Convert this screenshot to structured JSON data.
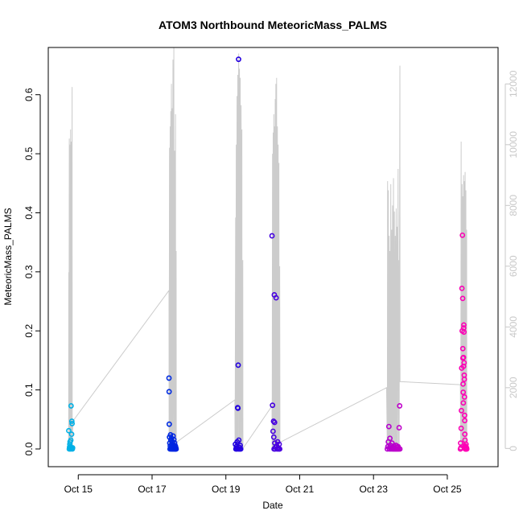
{
  "chart_data": {
    "type": "scatter",
    "title": "ATOM3 Northbound MeteoricMass_PALMS",
    "xlabel": "Date",
    "ylabel": "MeteoricMass_PALMS",
    "xlim": [
      "2017-10-14T04:30",
      "2017-10-26T09:00"
    ],
    "ylim": [
      -0.03,
      0.68
    ],
    "y2lim": [
      -600,
      13200
    ],
    "x_ticks": [
      {
        "label": "Oct 15",
        "date": "2017-10-15T00:00"
      },
      {
        "label": "Oct 17",
        "date": "2017-10-17T00:00"
      },
      {
        "label": "Oct 19",
        "date": "2017-10-19T00:00"
      },
      {
        "label": "Oct 21",
        "date": "2017-10-21T00:00"
      },
      {
        "label": "Oct 23",
        "date": "2017-10-23T00:00"
      },
      {
        "label": "Oct 25",
        "date": "2017-10-25T00:00"
      }
    ],
    "y_ticks": [
      "0.0",
      "0.1",
      "0.2",
      "0.3",
      "0.4",
      "0.5",
      "0.6"
    ],
    "y2_ticks": [
      "0",
      "2000",
      "4000",
      "6000",
      "8000",
      "10000",
      "12000"
    ],
    "colors": {
      "altitude_line": "#cccccc",
      "right_axis": "#c8c8c8",
      "point_gradient": [
        "#00b4e6",
        "#0000e0",
        "#8000e0",
        "#ff00b4"
      ]
    },
    "altitude_profile": [
      [
        "2017-10-14T17:45",
        0
      ],
      [
        "2017-10-14T17:50",
        5800
      ],
      [
        "2017-10-14T17:55",
        0
      ],
      [
        "2017-10-14T18:10",
        10200
      ],
      [
        "2017-10-14T18:15",
        0
      ],
      [
        "2017-10-14T18:35",
        10000
      ],
      [
        "2017-10-14T18:40",
        0
      ],
      [
        "2017-10-14T19:00",
        10500
      ],
      [
        "2017-10-14T19:05",
        0
      ],
      [
        "2017-10-14T19:30",
        10100
      ],
      [
        "2017-10-14T19:35",
        0
      ],
      [
        "2017-10-14T20:00",
        11900
      ],
      [
        "2017-10-14T20:05",
        0
      ],
      [
        "2017-10-14T20:30",
        900
      ],
      [
        "2017-10-17T11:00",
        5200
      ],
      [
        "2017-10-17T11:05",
        0
      ],
      [
        "2017-10-17T11:20",
        9900
      ],
      [
        "2017-10-17T11:25",
        0
      ],
      [
        "2017-10-17T11:45",
        10600
      ],
      [
        "2017-10-17T11:50",
        0
      ],
      [
        "2017-10-17T12:10",
        11100
      ],
      [
        "2017-10-17T12:15",
        0
      ],
      [
        "2017-10-17T12:35",
        12000
      ],
      [
        "2017-10-17T12:40",
        0
      ],
      [
        "2017-10-17T13:05",
        11200
      ],
      [
        "2017-10-17T13:10",
        0
      ],
      [
        "2017-10-17T13:35",
        12800
      ],
      [
        "2017-10-17T13:40",
        0
      ],
      [
        "2017-10-17T14:10",
        13200
      ],
      [
        "2017-10-17T14:15",
        0
      ],
      [
        "2017-10-17T14:40",
        9800
      ],
      [
        "2017-10-17T14:45",
        0
      ],
      [
        "2017-10-17T15:15",
        11000
      ],
      [
        "2017-10-17T15:20",
        0
      ],
      [
        "2017-10-17T15:40",
        6500
      ],
      [
        "2017-10-17T15:45",
        200
      ],
      [
        "2017-10-19T05:50",
        1600
      ],
      [
        "2017-10-19T06:00",
        0
      ],
      [
        "2017-10-19T06:20",
        7600
      ],
      [
        "2017-10-19T06:25",
        0
      ],
      [
        "2017-10-19T06:45",
        10000
      ],
      [
        "2017-10-19T06:50",
        0
      ],
      [
        "2017-10-19T07:15",
        11600
      ],
      [
        "2017-10-19T07:20",
        0
      ],
      [
        "2017-10-19T07:45",
        12300
      ],
      [
        "2017-10-19T07:50",
        0
      ],
      [
        "2017-10-19T08:20",
        13000
      ],
      [
        "2017-10-19T08:25",
        0
      ],
      [
        "2017-10-19T08:50",
        12500
      ],
      [
        "2017-10-19T08:55",
        0
      ],
      [
        "2017-10-19T09:20",
        12200
      ],
      [
        "2017-10-19T09:25",
        0
      ],
      [
        "2017-10-19T09:55",
        11300
      ],
      [
        "2017-10-19T10:00",
        0
      ],
      [
        "2017-10-19T10:25",
        10500
      ],
      [
        "2017-10-19T10:30",
        0
      ],
      [
        "2017-10-19T11:00",
        6200
      ],
      [
        "2017-10-19T11:05",
        0
      ],
      [
        "2017-10-20T06:00",
        1400
      ],
      [
        "2017-10-20T06:05",
        0
      ],
      [
        "2017-10-20T06:20",
        9700
      ],
      [
        "2017-10-20T06:25",
        0
      ],
      [
        "2017-10-20T06:45",
        10400
      ],
      [
        "2017-10-20T06:50",
        0
      ],
      [
        "2017-10-20T07:10",
        11000
      ],
      [
        "2017-10-20T07:15",
        0
      ],
      [
        "2017-10-20T07:35",
        10600
      ],
      [
        "2017-10-20T07:40",
        0
      ],
      [
        "2017-10-20T08:05",
        11500
      ],
      [
        "2017-10-20T08:10",
        0
      ],
      [
        "2017-10-20T08:30",
        12000
      ],
      [
        "2017-10-20T08:35",
        0
      ],
      [
        "2017-10-20T09:00",
        12200
      ],
      [
        "2017-10-20T09:05",
        0
      ],
      [
        "2017-10-20T09:30",
        10600
      ],
      [
        "2017-10-20T09:35",
        0
      ],
      [
        "2017-10-20T10:00",
        10000
      ],
      [
        "2017-10-20T10:05",
        0
      ],
      [
        "2017-10-20T10:30",
        9400
      ],
      [
        "2017-10-20T10:35",
        0
      ],
      [
        "2017-10-20T11:00",
        6000
      ],
      [
        "2017-10-20T11:10",
        200
      ],
      [
        "2017-10-23T08:30",
        2000
      ],
      [
        "2017-10-23T09:00",
        0
      ],
      [
        "2017-10-23T09:10",
        8800
      ],
      [
        "2017-10-23T09:15",
        0
      ],
      [
        "2017-10-23T09:40",
        8500
      ],
      [
        "2017-10-23T09:45",
        0
      ],
      [
        "2017-10-23T10:10",
        7000
      ],
      [
        "2017-10-23T10:15",
        0
      ],
      [
        "2017-10-23T10:40",
        6500
      ],
      [
        "2017-10-23T10:45",
        0
      ],
      [
        "2017-10-23T11:15",
        8700
      ],
      [
        "2017-10-23T11:20",
        0
      ],
      [
        "2017-10-23T11:50",
        7200
      ],
      [
        "2017-10-23T11:55",
        0
      ],
      [
        "2017-10-23T12:25",
        8000
      ],
      [
        "2017-10-23T12:30",
        0
      ],
      [
        "2017-10-23T13:00",
        8900
      ],
      [
        "2017-10-23T13:05",
        0
      ],
      [
        "2017-10-23T13:35",
        7800
      ],
      [
        "2017-10-23T13:40",
        0
      ],
      [
        "2017-10-23T14:10",
        7000
      ],
      [
        "2017-10-23T14:15",
        0
      ],
      [
        "2017-10-23T14:45",
        7900
      ],
      [
        "2017-10-23T14:50",
        0
      ],
      [
        "2017-10-23T15:20",
        7300
      ],
      [
        "2017-10-23T15:25",
        0
      ],
      [
        "2017-10-23T16:00",
        9200
      ],
      [
        "2017-10-23T16:05",
        0
      ],
      [
        "2017-10-23T16:35",
        6200
      ],
      [
        "2017-10-23T16:40",
        0
      ],
      [
        "2017-10-23T17:10",
        12600
      ],
      [
        "2017-10-23T17:15",
        2200
      ],
      [
        "2017-10-25T08:30",
        2100
      ],
      [
        "2017-10-25T08:45",
        0
      ],
      [
        "2017-10-25T09:00",
        10100
      ],
      [
        "2017-10-25T09:05",
        0
      ],
      [
        "2017-10-25T09:35",
        8700
      ],
      [
        "2017-10-25T09:40",
        0
      ],
      [
        "2017-10-25T10:05",
        8300
      ],
      [
        "2017-10-25T10:10",
        0
      ],
      [
        "2017-10-25T10:35",
        9000
      ],
      [
        "2017-10-25T10:40",
        0
      ],
      [
        "2017-10-25T11:05",
        8800
      ],
      [
        "2017-10-25T11:10",
        0
      ],
      [
        "2017-10-25T11:35",
        9100
      ],
      [
        "2017-10-25T11:40",
        0
      ],
      [
        "2017-10-25T12:05",
        8500
      ],
      [
        "2017-10-25T12:10",
        0
      ],
      [
        "2017-10-25T12:35",
        7200
      ],
      [
        "2017-10-25T12:40",
        0
      ]
    ],
    "points": [
      [
        "2017-10-14T17:50",
        0.031
      ],
      [
        "2017-10-14T18:10",
        0.0
      ],
      [
        "2017-10-14T18:20",
        0.003
      ],
      [
        "2017-10-14T18:30",
        0.008
      ],
      [
        "2017-10-14T18:40",
        0.012
      ],
      [
        "2017-10-14T18:50",
        0.004
      ],
      [
        "2017-10-14T19:00",
        0.0
      ],
      [
        "2017-10-14T19:05",
        0.001
      ],
      [
        "2017-10-14T19:10",
        0.015
      ],
      [
        "2017-10-14T19:20",
        0.073
      ],
      [
        "2017-10-14T19:30",
        0.002
      ],
      [
        "2017-10-14T19:40",
        0.025
      ],
      [
        "2017-10-14T19:50",
        0.047
      ],
      [
        "2017-10-14T20:00",
        0.043
      ],
      [
        "2017-10-14T20:10",
        0.0
      ],
      [
        "2017-10-14T20:20",
        0.002
      ],
      [
        "2017-10-17T11:00",
        0.12
      ],
      [
        "2017-10-17T11:05",
        0.097
      ],
      [
        "2017-10-17T11:10",
        0.042
      ],
      [
        "2017-10-17T11:20",
        0.02
      ],
      [
        "2017-10-17T11:30",
        0.01
      ],
      [
        "2017-10-17T11:40",
        0.0
      ],
      [
        "2017-10-17T11:50",
        0.005
      ],
      [
        "2017-10-17T12:00",
        0.024
      ],
      [
        "2017-10-17T12:10",
        0.015
      ],
      [
        "2017-10-17T12:20",
        0.002
      ],
      [
        "2017-10-17T12:30",
        0.0
      ],
      [
        "2017-10-17T12:40",
        0.018
      ],
      [
        "2017-10-17T12:50",
        0.008
      ],
      [
        "2017-10-17T13:00",
        0.0
      ],
      [
        "2017-10-17T13:10",
        0.003
      ],
      [
        "2017-10-17T13:20",
        0.012
      ],
      [
        "2017-10-17T13:30",
        0.0
      ],
      [
        "2017-10-17T13:40",
        0.022
      ],
      [
        "2017-10-17T13:50",
        0.004
      ],
      [
        "2017-10-17T14:00",
        0.0
      ],
      [
        "2017-10-17T14:10",
        0.016
      ],
      [
        "2017-10-17T14:20",
        0.006
      ],
      [
        "2017-10-17T14:30",
        0.0
      ],
      [
        "2017-10-17T14:40",
        0.01
      ],
      [
        "2017-10-17T14:50",
        0.002
      ],
      [
        "2017-10-17T15:00",
        0.0
      ],
      [
        "2017-10-17T15:10",
        0.005
      ],
      [
        "2017-10-17T15:20",
        0.0
      ],
      [
        "2017-10-17T15:30",
        0.002
      ],
      [
        "2017-10-17T15:40",
        0.0
      ],
      [
        "2017-10-19T06:10",
        0.008
      ],
      [
        "2017-10-19T06:30",
        0.0
      ],
      [
        "2017-10-19T06:50",
        0.004
      ],
      [
        "2017-10-19T07:10",
        0.0
      ],
      [
        "2017-10-19T07:20",
        0.012
      ],
      [
        "2017-10-19T07:30",
        0.002
      ],
      [
        "2017-10-19T07:40",
        0.07
      ],
      [
        "2017-10-19T07:50",
        0.069
      ],
      [
        "2017-10-19T08:00",
        0.142
      ],
      [
        "2017-10-19T08:10",
        0.0
      ],
      [
        "2017-10-19T08:15",
        0.66
      ],
      [
        "2017-10-19T08:25",
        0.015
      ],
      [
        "2017-10-19T08:40",
        0.003
      ],
      [
        "2017-10-19T09:00",
        0.0
      ],
      [
        "2017-10-19T09:20",
        0.006
      ],
      [
        "2017-10-19T09:40",
        0.0
      ],
      [
        "2017-10-20T06:00",
        0.361
      ],
      [
        "2017-10-20T06:20",
        0.074
      ],
      [
        "2017-10-20T06:40",
        0.03
      ],
      [
        "2017-10-20T07:00",
        0.047
      ],
      [
        "2017-10-20T07:10",
        0.02
      ],
      [
        "2017-10-20T07:20",
        0.0
      ],
      [
        "2017-10-20T07:30",
        0.261
      ],
      [
        "2017-10-20T07:40",
        0.045
      ],
      [
        "2017-10-20T07:50",
        0.01
      ],
      [
        "2017-10-20T08:00",
        0.0
      ],
      [
        "2017-10-20T08:20",
        0.003
      ],
      [
        "2017-10-20T08:40",
        0.256
      ],
      [
        "2017-10-20T09:00",
        0.005
      ],
      [
        "2017-10-20T09:20",
        0.0
      ],
      [
        "2017-10-20T09:40",
        0.012
      ],
      [
        "2017-10-20T10:00",
        0.002
      ],
      [
        "2017-10-20T10:20",
        0.0
      ],
      [
        "2017-10-20T10:40",
        0.008
      ],
      [
        "2017-10-20T11:00",
        0.0
      ],
      [
        "2017-10-23T09:00",
        0.0
      ],
      [
        "2017-10-23T09:20",
        0.004
      ],
      [
        "2017-10-23T09:40",
        0.012
      ],
      [
        "2017-10-23T10:00",
        0.038
      ],
      [
        "2017-10-23T10:20",
        0.0
      ],
      [
        "2017-10-23T10:40",
        0.018
      ],
      [
        "2017-10-23T11:00",
        0.006
      ],
      [
        "2017-10-23T11:20",
        0.0
      ],
      [
        "2017-10-23T11:40",
        0.002
      ],
      [
        "2017-10-23T12:00",
        0.01
      ],
      [
        "2017-10-23T12:20",
        0.0
      ],
      [
        "2017-10-23T12:40",
        0.003
      ],
      [
        "2017-10-23T13:00",
        0.0
      ],
      [
        "2017-10-23T13:20",
        0.005
      ],
      [
        "2017-10-23T13:40",
        0.0
      ],
      [
        "2017-10-23T14:00",
        0.002
      ],
      [
        "2017-10-23T14:20",
        0.0
      ],
      [
        "2017-10-23T14:40",
        0.006
      ],
      [
        "2017-10-23T15:00",
        0.0
      ],
      [
        "2017-10-23T15:20",
        0.003
      ],
      [
        "2017-10-23T15:40",
        0.0
      ],
      [
        "2017-10-23T16:00",
        0.004
      ],
      [
        "2017-10-23T16:20",
        0.0
      ],
      [
        "2017-10-23T16:40",
        0.036
      ],
      [
        "2017-10-23T17:00",
        0.073
      ],
      [
        "2017-10-23T17:10",
        0.0
      ],
      [
        "2017-10-25T08:30",
        0.0
      ],
      [
        "2017-10-25T08:40",
        0.01
      ],
      [
        "2017-10-25T08:50",
        0.002
      ],
      [
        "2017-10-25T09:00",
        0.035
      ],
      [
        "2017-10-25T09:10",
        0.065
      ],
      [
        "2017-10-25T09:20",
        0.137
      ],
      [
        "2017-10-25T09:30",
        0.272
      ],
      [
        "2017-10-25T09:40",
        0.2
      ],
      [
        "2017-10-25T09:50",
        0.362
      ],
      [
        "2017-10-25T10:00",
        0.255
      ],
      [
        "2017-10-25T10:05",
        0.17
      ],
      [
        "2017-10-25T10:10",
        0.154
      ],
      [
        "2017-10-25T10:15",
        0.11
      ],
      [
        "2017-10-25T10:20",
        0.096
      ],
      [
        "2017-10-25T10:25",
        0.078
      ],
      [
        "2017-10-25T10:30",
        0.155
      ],
      [
        "2017-10-25T10:35",
        0.14
      ],
      [
        "2017-10-25T10:40",
        0.205
      ],
      [
        "2017-10-25T10:45",
        0.21
      ],
      [
        "2017-10-25T10:50",
        0.198
      ],
      [
        "2017-10-25T10:55",
        0.146
      ],
      [
        "2017-10-25T11:00",
        0.125
      ],
      [
        "2017-10-25T11:05",
        0.118
      ],
      [
        "2017-10-25T11:10",
        0.088
      ],
      [
        "2017-10-25T11:15",
        0.057
      ],
      [
        "2017-10-25T11:20",
        0.048
      ],
      [
        "2017-10-25T11:25",
        0.025
      ],
      [
        "2017-10-25T11:30",
        0.015
      ],
      [
        "2017-10-25T11:35",
        0.005
      ],
      [
        "2017-10-25T11:40",
        0.0
      ],
      [
        "2017-10-25T11:50",
        0.003
      ],
      [
        "2017-10-25T12:00",
        0.0
      ],
      [
        "2017-10-25T12:10",
        0.008
      ],
      [
        "2017-10-25T12:20",
        0.0
      ],
      [
        "2017-10-25T12:30",
        0.002
      ],
      [
        "2017-10-25T12:40",
        0.0
      ]
    ]
  }
}
